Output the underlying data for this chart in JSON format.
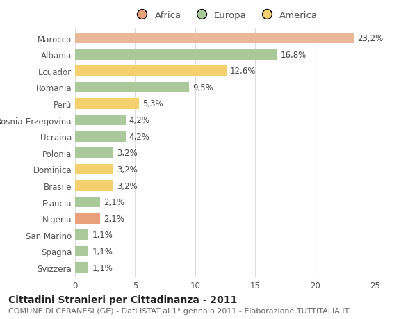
{
  "countries": [
    "Svizzera",
    "Spagna",
    "San Marino",
    "Nigeria",
    "Francia",
    "Brasile",
    "Dominica",
    "Polonia",
    "Ucraina",
    "Bosnia-Erzegovina",
    "Perù",
    "Romania",
    "Ecuador",
    "Albania",
    "Marocco"
  ],
  "values": [
    1.1,
    1.1,
    1.1,
    2.1,
    2.1,
    3.2,
    3.2,
    3.2,
    4.2,
    4.2,
    5.3,
    9.5,
    12.6,
    16.8,
    23.2
  ],
  "labels": [
    "1,1%",
    "1,1%",
    "1,1%",
    "2,1%",
    "2,1%",
    "3,2%",
    "3,2%",
    "3,2%",
    "4,2%",
    "4,2%",
    "5,3%",
    "9,5%",
    "12,6%",
    "16,8%",
    "23,2%"
  ],
  "colors": [
    "#aac99a",
    "#aac99a",
    "#aac99a",
    "#e8a07a",
    "#aac99a",
    "#f5d06e",
    "#f5d06e",
    "#aac99a",
    "#aac99a",
    "#aac99a",
    "#f5d06e",
    "#aac99a",
    "#f5d06e",
    "#aac99a",
    "#e8b898"
  ],
  "legend_labels": [
    "Africa",
    "Europa",
    "America"
  ],
  "legend_colors": [
    "#e8a07a",
    "#aac99a",
    "#f5d06e"
  ],
  "title_bold": "Cittadini Stranieri per Cittadinanza - 2011",
  "subtitle": "COMUNE DI CERANESI (GE) - Dati ISTAT al 1° gennaio 2011 - Elaborazione TUTTITALIA.IT",
  "xlim": [
    0,
    25
  ],
  "xticks": [
    0,
    5,
    10,
    15,
    20,
    25
  ],
  "background_color": "#ffffff",
  "grid_color": "#dddddd",
  "bar_height": 0.65,
  "label_fontsize": 8.5,
  "tick_fontsize": 8.5,
  "title_fontsize": 10,
  "subtitle_fontsize": 8
}
